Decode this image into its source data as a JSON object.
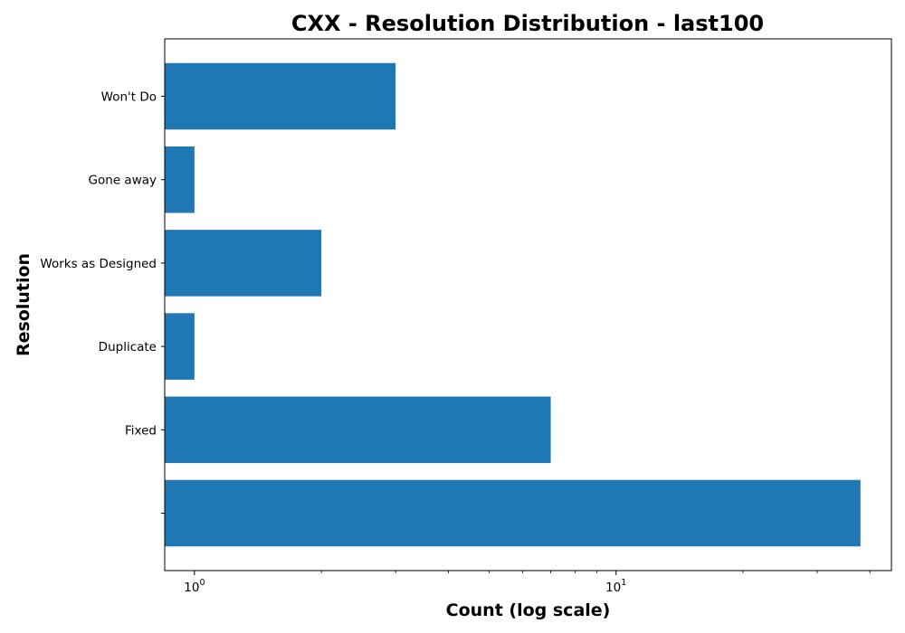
{
  "chart_data": {
    "type": "bar",
    "orientation": "horizontal",
    "title": "CXX - Resolution Distribution - last100",
    "xlabel": "Count (log scale)",
    "ylabel": "Resolution",
    "x_scale": "log",
    "xlim": [
      0.85,
      45
    ],
    "x_ticks": [
      {
        "value": 1,
        "base": "10",
        "exp": "0"
      },
      {
        "value": 10,
        "base": "10",
        "exp": "1"
      }
    ],
    "categories": [
      "",
      "Fixed",
      "Duplicate",
      "Works as Designed",
      "Gone away",
      "Won't Do"
    ],
    "values": [
      38,
      7,
      1,
      2,
      1,
      3
    ],
    "bar_color": "#1f77b4",
    "grid": false,
    "legend": "none"
  }
}
